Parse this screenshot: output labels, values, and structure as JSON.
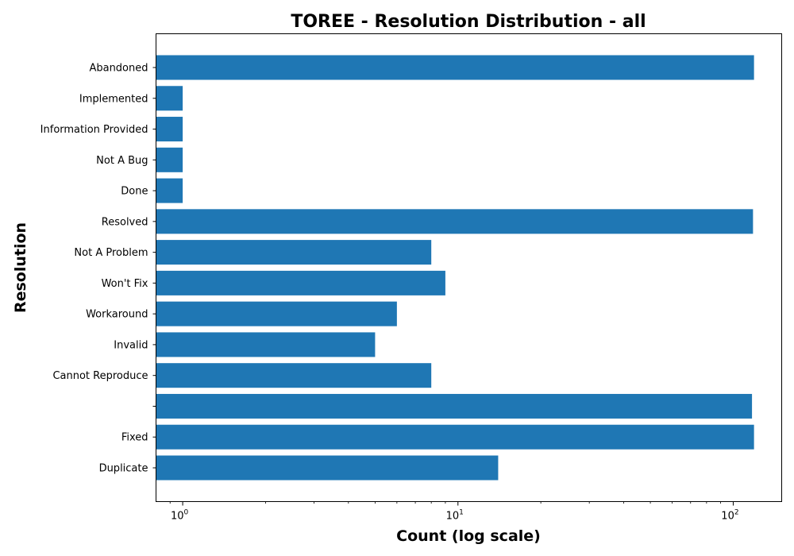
{
  "chart_data": {
    "type": "bar",
    "orientation": "horizontal",
    "title": "TOREE - Resolution Distribution - all",
    "xlabel": "Count (log scale)",
    "ylabel": "Resolution",
    "xscale": "log",
    "xlim": [
      0.8,
      150
    ],
    "x_ticks": [
      {
        "base": "10",
        "exp": "0",
        "value": 1
      },
      {
        "base": "10",
        "exp": "1",
        "value": 10
      },
      {
        "base": "10",
        "exp": "2",
        "value": 100
      }
    ],
    "grid": false,
    "bar_color": "#1f77b4",
    "categories": [
      "Abandoned",
      "Implemented",
      "Information Provided",
      "Not A Bug",
      "Done",
      "Resolved",
      "Not A Problem",
      "Won't Fix",
      "Workaround",
      "Invalid",
      "Cannot Reproduce",
      "",
      "Fixed",
      "Duplicate"
    ],
    "values": [
      119,
      1,
      1,
      1,
      1,
      118,
      8,
      9,
      6,
      5,
      8,
      117,
      119,
      14
    ]
  }
}
